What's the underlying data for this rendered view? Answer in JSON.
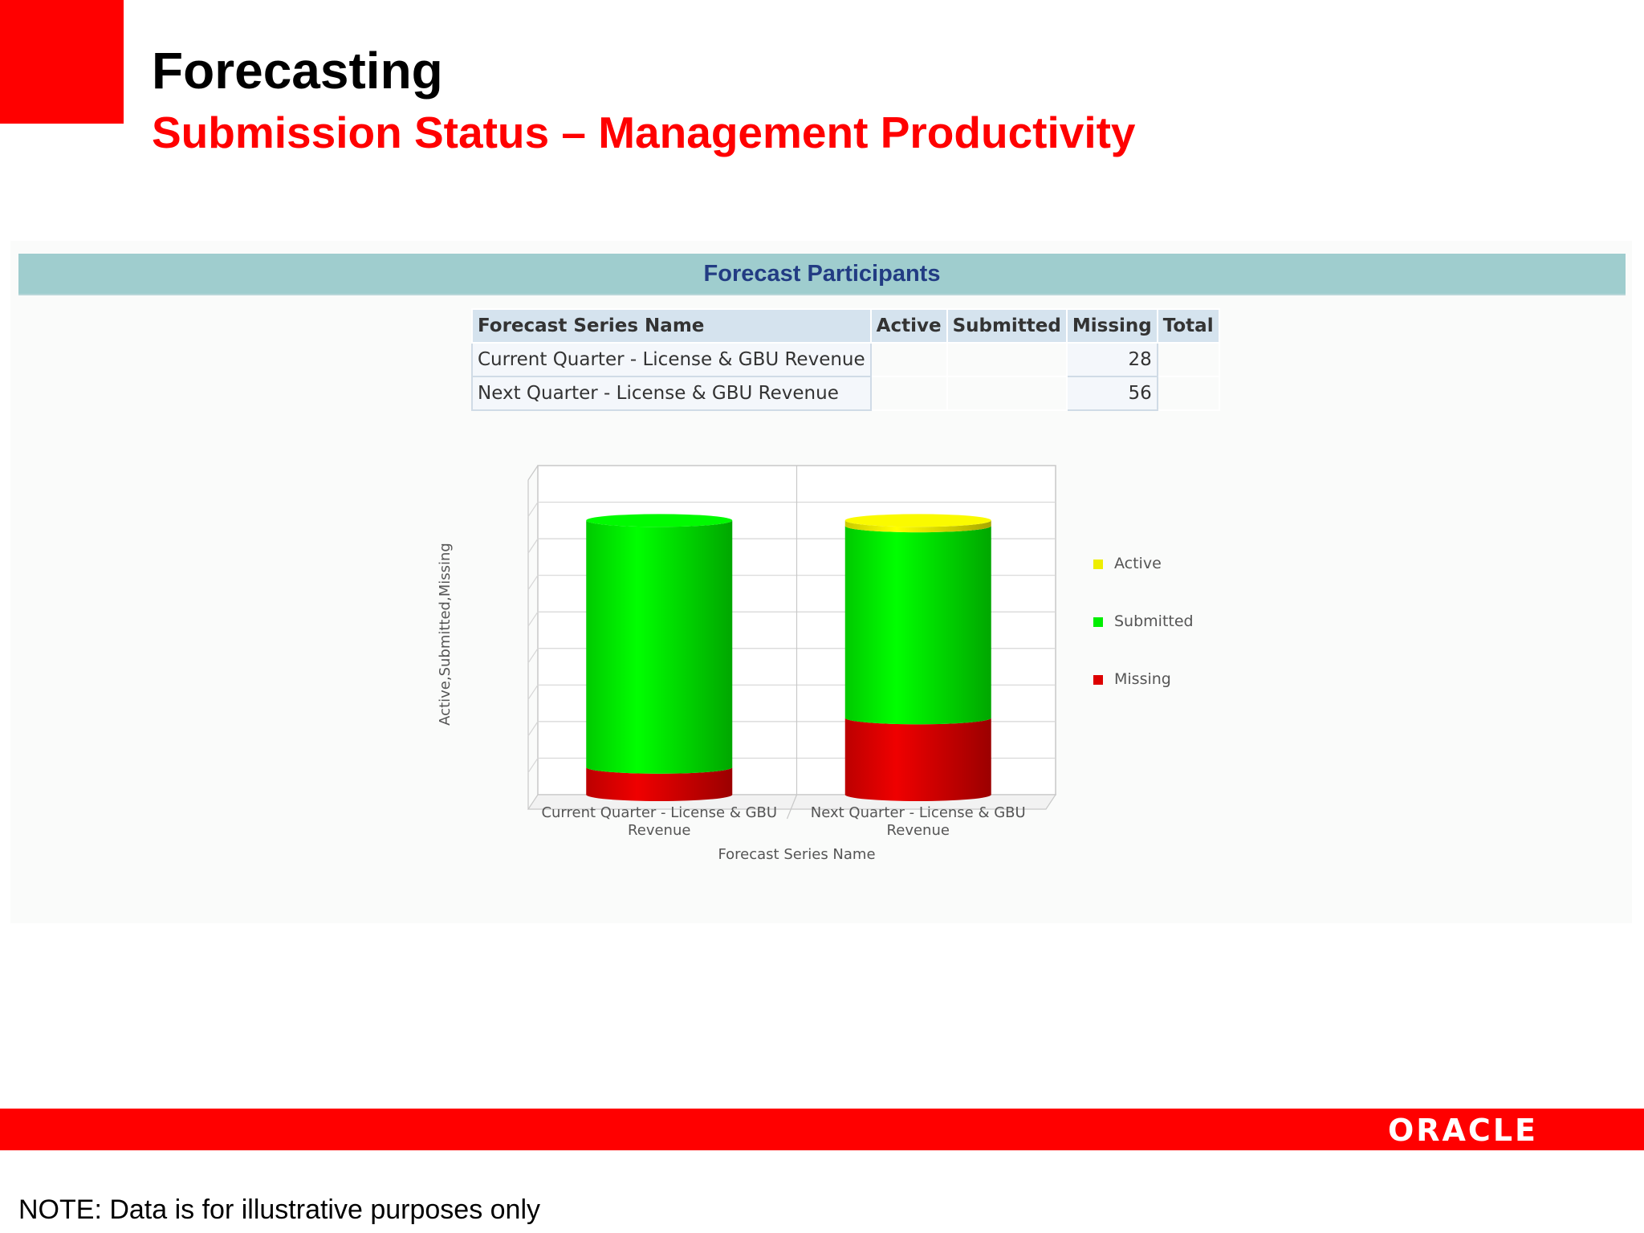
{
  "slide": {
    "title": "Forecasting",
    "subtitle": "Submission Status – Management Productivity",
    "note": "NOTE: Data is for illustrative purposes only",
    "logo_text": "ORACLE"
  },
  "panel": {
    "title": "Forecast Participants"
  },
  "table": {
    "headers": [
      "Forecast Series Name",
      "Active",
      "Submitted",
      "Missing",
      "Total"
    ],
    "rows": [
      {
        "name": "Current Quarter - License & GBU Revenue",
        "active": "",
        "submitted": "",
        "missing": "28",
        "total": ""
      },
      {
        "name": "Next Quarter - License & GBU Revenue",
        "active": "",
        "submitted": "",
        "missing": "56",
        "total": ""
      }
    ]
  },
  "chart_data": {
    "type": "bar",
    "stacked": true,
    "categories": [
      "Current Quarter - License & GBU Revenue",
      "Next Quarter - License & GBU Revenue"
    ],
    "category_lines": [
      [
        "Current Quarter - License & GBU",
        "Revenue"
      ],
      [
        "Next Quarter - License & GBU",
        "Revenue"
      ]
    ],
    "series": [
      {
        "name": "Missing",
        "color": "#dd0000",
        "values": [
          0.1,
          0.28
        ]
      },
      {
        "name": "Submitted",
        "color": "#00ee00",
        "values": [
          0.9,
          0.7
        ]
      },
      {
        "name": "Active",
        "color": "#eeee00",
        "values": [
          0,
          0.02
        ]
      }
    ],
    "ylim": [
      0,
      1.2
    ],
    "grid_lines": 8,
    "xlabel": "Forecast Series Name",
    "ylabel": "Active,Submitted,Missing",
    "legend_position": "right",
    "legend_order": [
      "Active",
      "Submitted",
      "Missing"
    ]
  }
}
